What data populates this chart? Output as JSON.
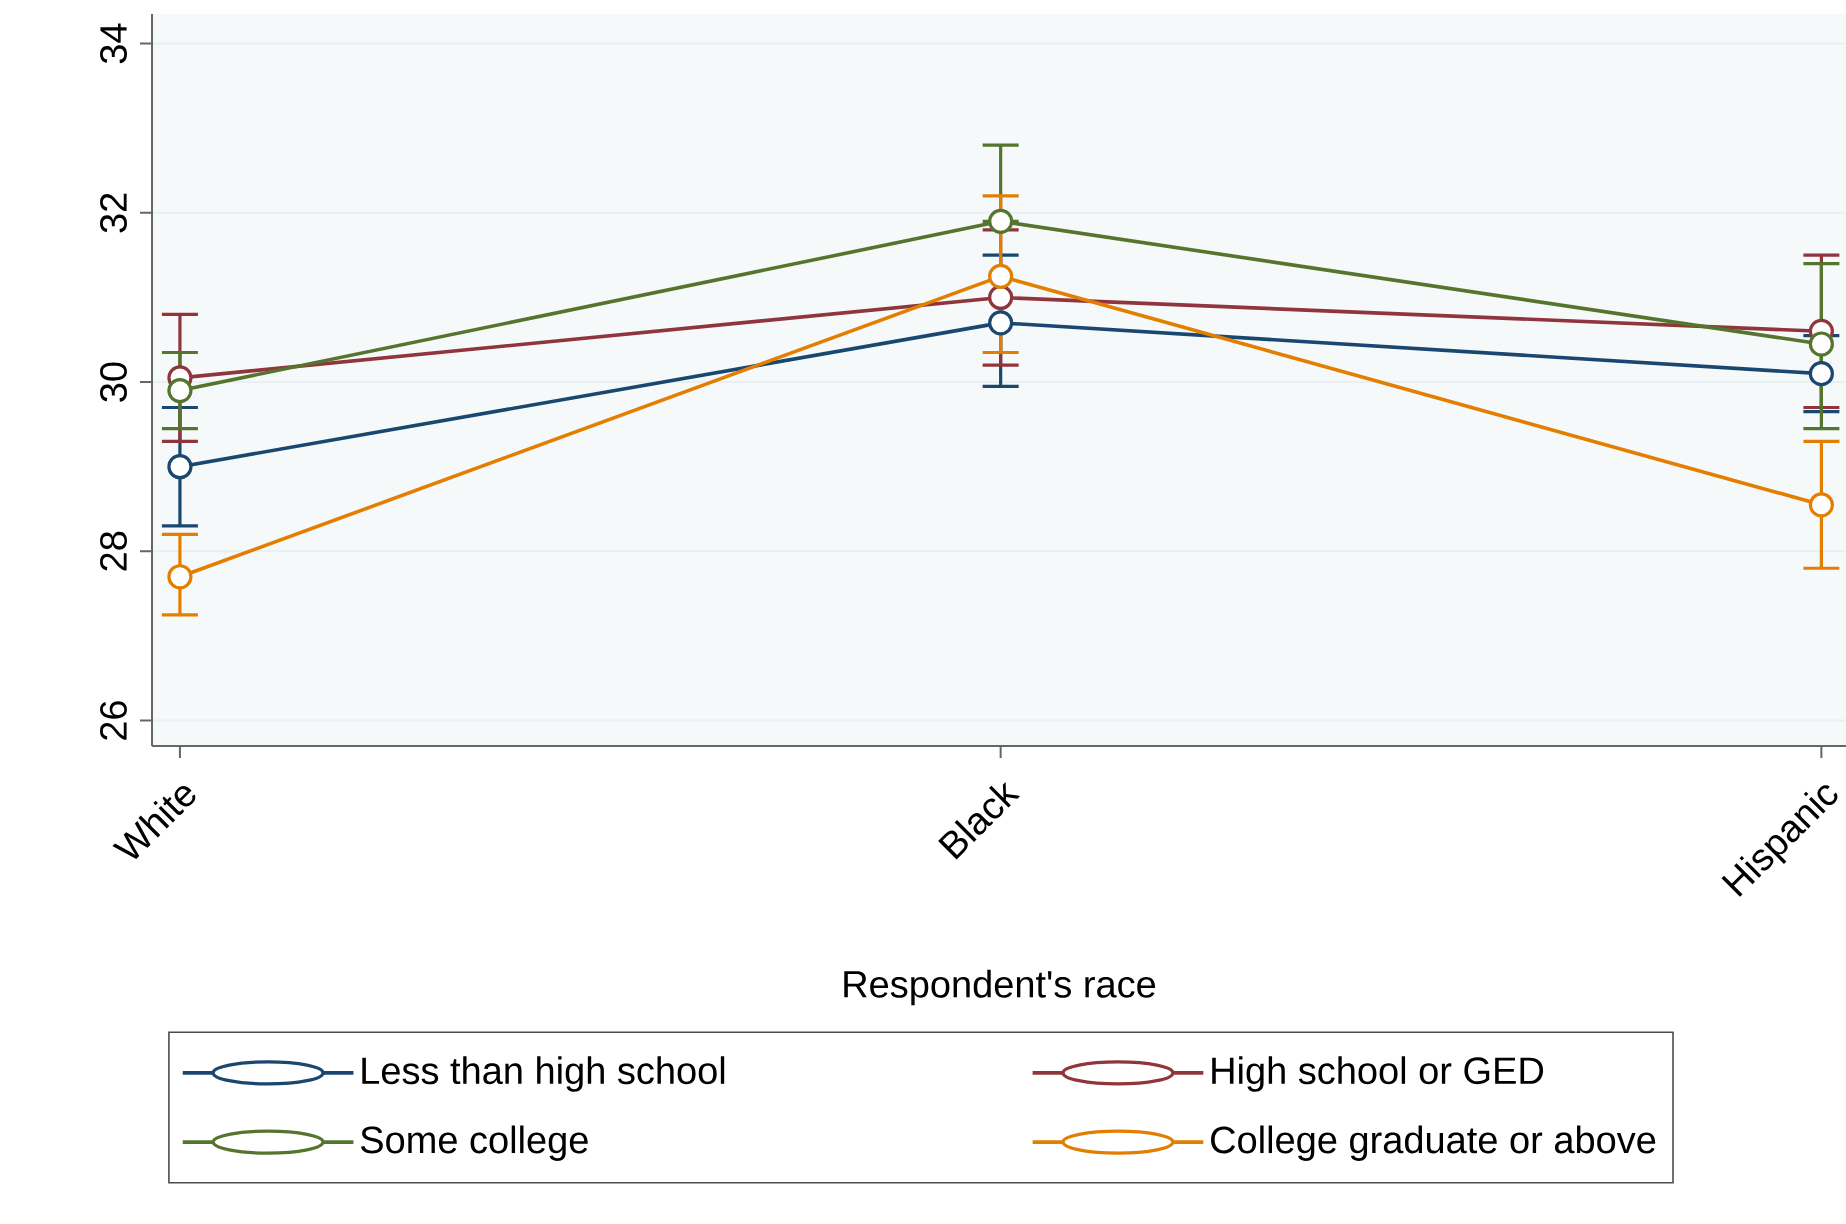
{
  "chart_data": {
    "type": "line",
    "xlabel": "Respondent's race",
    "categories": [
      "White",
      "Black",
      "Hispanic"
    ],
    "series": [
      {
        "name": "Less than high school",
        "color": "#1a476f",
        "values": [
          29.0,
          30.7,
          30.1
        ],
        "errors": [
          [
            28.3,
            29.7
          ],
          [
            29.95,
            31.5
          ],
          [
            29.65,
            30.55
          ]
        ]
      },
      {
        "name": "High school or GED",
        "color": "#90353b",
        "values": [
          30.05,
          31.0,
          30.6
        ],
        "errors": [
          [
            29.3,
            30.8
          ],
          [
            30.2,
            31.8
          ],
          [
            29.7,
            31.5
          ]
        ]
      },
      {
        "name": "Some college",
        "color": "#55752f",
        "values": [
          29.9,
          31.9,
          30.45
        ],
        "errors": [
          [
            29.45,
            30.35
          ],
          [
            31.9,
            32.8
          ],
          [
            29.45,
            31.4
          ]
        ]
      },
      {
        "name": "College graduate or above",
        "color": "#e37e00",
        "values": [
          27.7,
          31.25,
          28.55
        ],
        "errors": [
          [
            27.25,
            28.2
          ],
          [
            30.35,
            32.2
          ],
          [
            27.8,
            29.3
          ]
        ]
      }
    ],
    "ylim": [
      25.7,
      34.35
    ],
    "yticks": [
      26,
      28,
      30,
      32,
      34
    ],
    "grid": "y",
    "legend": "bottom",
    "marker": "circle",
    "line_style": "solid"
  }
}
